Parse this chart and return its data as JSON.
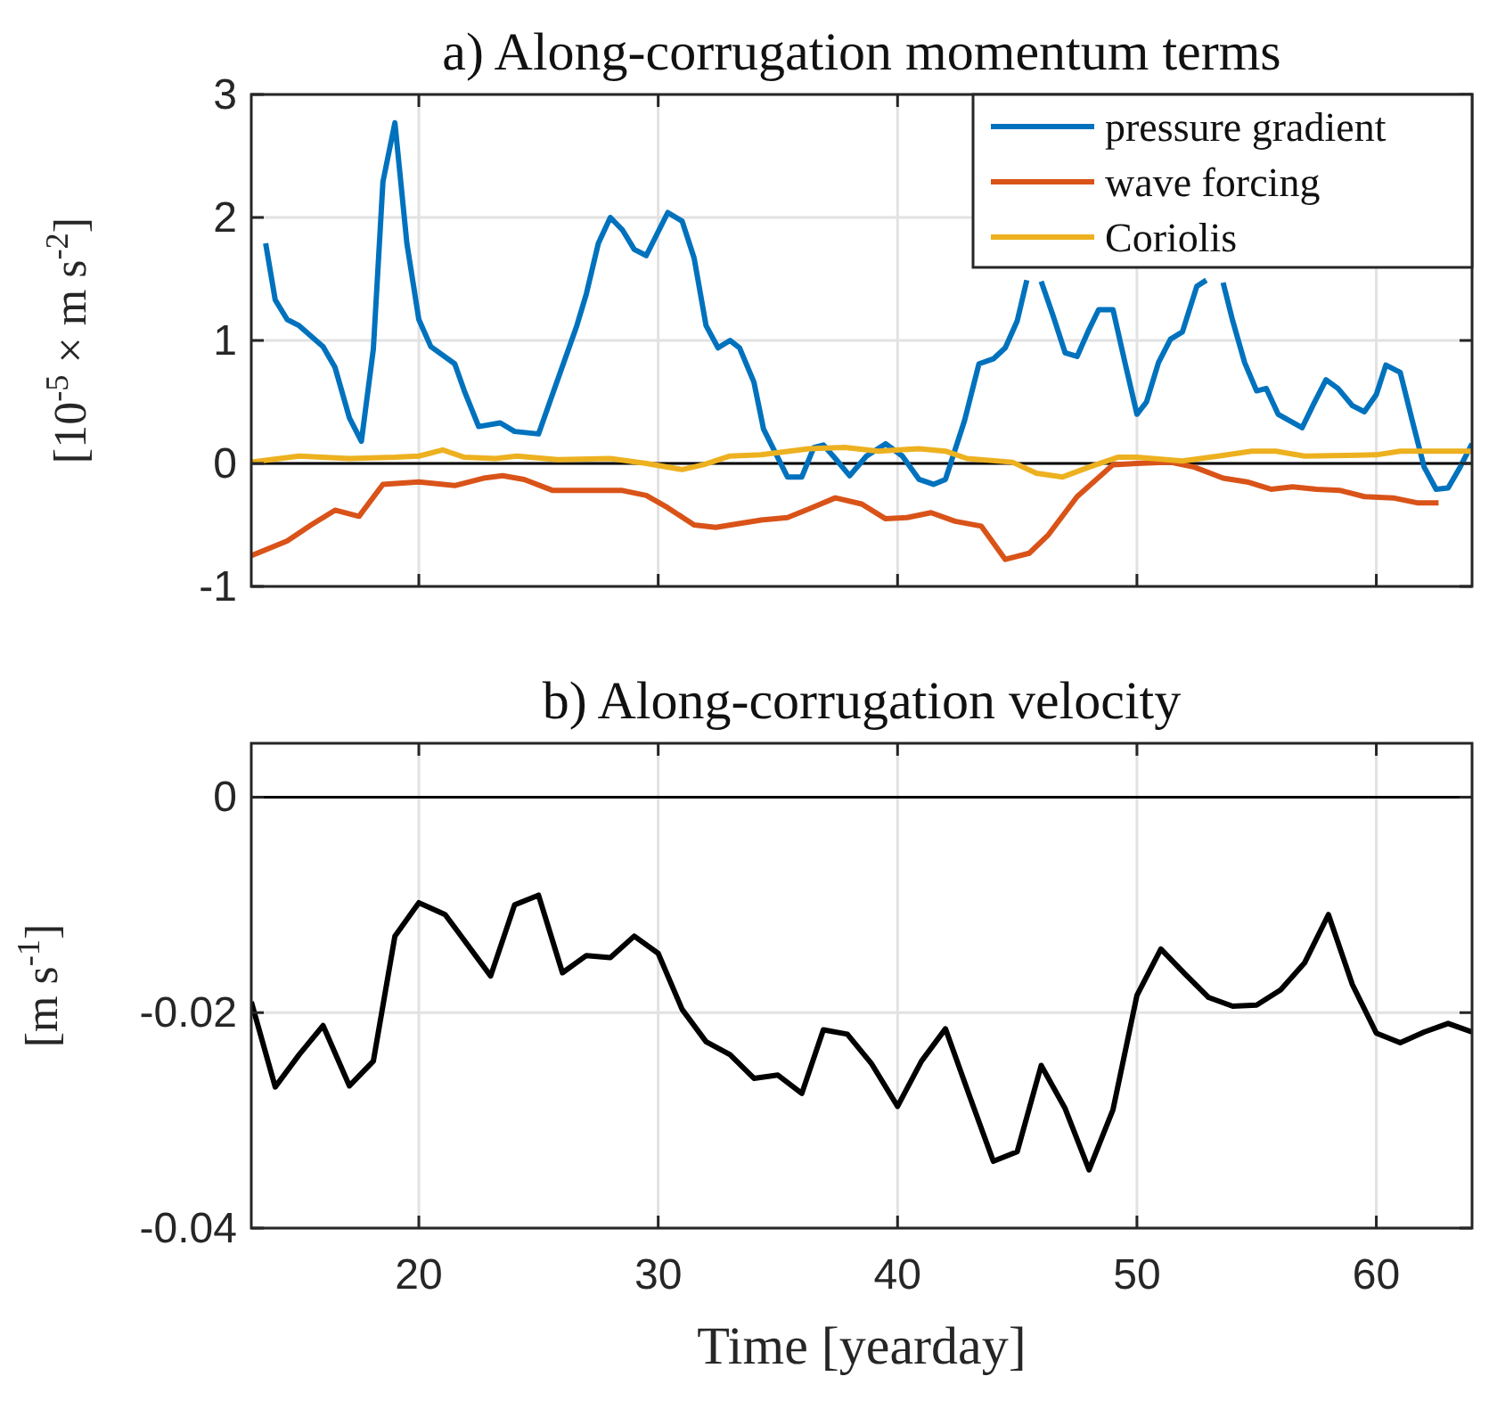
{
  "chart_data": [
    {
      "type": "line",
      "title": "a) Along-corrugation momentum terms",
      "ylabel": "[10$^{-5}$ × m s$^{-2}$]",
      "xlim": [
        13,
        64
      ],
      "xticks": [
        20,
        30,
        40,
        50,
        60
      ],
      "ylim": [
        -1,
        3
      ],
      "yticks": [
        -1,
        0,
        1,
        2,
        3
      ],
      "grid": true,
      "legend": "top right",
      "tick_labels": "y",
      "ref_lines": [
        {
          "axis": "y",
          "value": 0,
          "color": "#000000"
        }
      ],
      "series": [
        {
          "name": "pressure gradient",
          "color": "#0072bd",
          "x": [
            13.6,
            14,
            14.5,
            15,
            16,
            16.5,
            17.1,
            17.6,
            18.1,
            18.5,
            19,
            19.5,
            20,
            20.5,
            21.5,
            21.9,
            22.5,
            23.4,
            24,
            25,
            25.6,
            26.6,
            27,
            27.5,
            28,
            28.5,
            29,
            29.5,
            30.4,
            31,
            31.5,
            32,
            32.5,
            33,
            33.4,
            34,
            34.4,
            35.4,
            36,
            36.5,
            36.9,
            37.4,
            38,
            38.7,
            39.5,
            40.2,
            40.9,
            41.5,
            42,
            42.8,
            43.4,
            44,
            44.5,
            45,
            45.4,
            45.7,
            46,
            46.5,
            47,
            47.5,
            48,
            48.4,
            49,
            49.5,
            50,
            50.4,
            50.9,
            51.4,
            51.9,
            52.5,
            52.9,
            53.2,
            53.6,
            54,
            54.5,
            55,
            55.4,
            55.9,
            56.9,
            57.4,
            57.9,
            58.4,
            59,
            59.5,
            60,
            60.4,
            61,
            61.5,
            62,
            62.5,
            63,
            63.5,
            64
          ],
          "values": [
            1.79,
            1.33,
            1.17,
            1.12,
            0.95,
            0.78,
            0.37,
            0.18,
            0.93,
            2.29,
            2.77,
            1.79,
            1.17,
            0.95,
            0.81,
            0.59,
            0.3,
            0.33,
            0.26,
            0.24,
            0.57,
            1.12,
            1.38,
            1.79,
            2,
            1.9,
            1.74,
            1.69,
            2.04,
            1.97,
            1.67,
            1.12,
            0.94,
            1,
            0.94,
            0.66,
            0.28,
            -0.11,
            -0.11,
            0.13,
            0.15,
            0.04,
            -0.1,
            0.06,
            0.16,
            0.06,
            -0.13,
            -0.17,
            -0.13,
            0.35,
            0.81,
            0.85,
            0.94,
            1.16,
            1.49,
            null,
            1.48,
            1.2,
            0.9,
            0.87,
            1.09,
            1.25,
            1.25,
            0.82,
            0.4,
            0.5,
            0.82,
            1.01,
            1.07,
            1.44,
            1.49,
            null,
            1.47,
            1.16,
            0.82,
            0.59,
            0.61,
            0.4,
            0.29,
            0.49,
            0.68,
            0.61,
            0.47,
            0.42,
            0.56,
            0.8,
            0.74,
            0.35,
            -0.03,
            -0.21,
            -0.2,
            -0.03,
            0.16
          ]
        },
        {
          "name": "wave forcing",
          "color": "#d95319",
          "x": [
            13,
            14.5,
            15.5,
            16.5,
            17.5,
            18.5,
            20,
            21.5,
            22.7,
            23.5,
            24.4,
            25.6,
            27,
            28.5,
            29.5,
            30.4,
            31.5,
            32.4,
            34.3,
            35.4,
            36.3,
            37.4,
            38.5,
            39.5,
            40.4,
            41.4,
            42.4,
            43.5,
            44.5,
            45.5,
            46.3,
            47.5,
            49,
            50,
            51.4,
            52.4,
            53.6,
            54.6,
            55.6,
            56.5,
            57.5,
            58.5,
            59.5,
            60.7,
            61.7,
            62.6
          ],
          "values": [
            -0.75,
            -0.63,
            -0.5,
            -0.38,
            -0.43,
            -0.17,
            -0.15,
            -0.18,
            -0.12,
            -0.1,
            -0.13,
            -0.22,
            -0.22,
            -0.22,
            -0.26,
            -0.36,
            -0.5,
            -0.52,
            -0.46,
            -0.44,
            -0.37,
            -0.28,
            -0.33,
            -0.45,
            -0.44,
            -0.4,
            -0.47,
            -0.51,
            -0.78,
            -0.73,
            -0.58,
            -0.27,
            -0.01,
            0,
            0.01,
            -0.03,
            -0.12,
            -0.15,
            -0.21,
            -0.19,
            -0.21,
            -0.22,
            -0.27,
            -0.28,
            -0.32,
            -0.32
          ]
        },
        {
          "name": "Coriolis",
          "color": "#edb120",
          "x": [
            13,
            15,
            17.1,
            19,
            20,
            21,
            21.9,
            23.2,
            24.1,
            25.8,
            28,
            29.5,
            31,
            31.9,
            33,
            34.3,
            36.3,
            37.8,
            39.2,
            40.9,
            42,
            42.9,
            44.8,
            45.8,
            46.9,
            48,
            49.2,
            50,
            51.9,
            53.4,
            54.8,
            55.8,
            57,
            60,
            61,
            64
          ],
          "values": [
            0.01,
            0.06,
            0.04,
            0.05,
            0.06,
            0.11,
            0.05,
            0.04,
            0.06,
            0.03,
            0.04,
            0,
            -0.05,
            -0.01,
            0.06,
            0.07,
            0.12,
            0.13,
            0.1,
            0.12,
            0.1,
            0.04,
            0.01,
            -0.08,
            -0.11,
            -0.03,
            0.05,
            0.05,
            0.02,
            0.06,
            0.1,
            0.1,
            0.06,
            0.07,
            0.1,
            0.1
          ]
        }
      ]
    },
    {
      "type": "line",
      "title": "b) Along-corrugation velocity",
      "xlabel": "Time [yearday]",
      "ylabel": "[m s$^{-1}$]",
      "xlim": [
        13,
        64
      ],
      "xticks": [
        20,
        30,
        40,
        50,
        60
      ],
      "ylim": [
        -0.04,
        0.005
      ],
      "yticks": [
        -0.04,
        -0.02,
        0
      ],
      "grid": true,
      "ref_lines": [
        {
          "axis": "y",
          "value": 0,
          "color": "#000000"
        }
      ],
      "series": [
        {
          "color": "#000000",
          "x": [
            13,
            14,
            15,
            16,
            17.1,
            18.1,
            19,
            20,
            21.1,
            23,
            24,
            25,
            26,
            27,
            28,
            29,
            30,
            31,
            32,
            33,
            34,
            35,
            36,
            36.9,
            37.9,
            38.9,
            40,
            41,
            42,
            43,
            44,
            45,
            46,
            47,
            48,
            49,
            50,
            51,
            52,
            53,
            54,
            55,
            56,
            57,
            58,
            59,
            60,
            61,
            62,
            63,
            64
          ],
          "values": [
            -0.019,
            -0.0269,
            -0.0239,
            -0.0212,
            -0.0268,
            -0.0245,
            -0.0129,
            -0.0098,
            -0.0109,
            -0.0166,
            -0.01,
            -0.0091,
            -0.0163,
            -0.0147,
            -0.0149,
            -0.0129,
            -0.0145,
            -0.0197,
            -0.0227,
            -0.0239,
            -0.0261,
            -0.0258,
            -0.0275,
            -0.0216,
            -0.022,
            -0.0247,
            -0.0287,
            -0.0245,
            -0.0215,
            -0.0277,
            -0.0338,
            -0.0329,
            -0.0249,
            -0.0289,
            -0.0346,
            -0.029,
            -0.0184,
            -0.0141,
            -0.0164,
            -0.0186,
            -0.0194,
            -0.0193,
            -0.0179,
            -0.0154,
            -0.0109,
            -0.0174,
            -0.0219,
            -0.0228,
            -0.0218,
            -0.021,
            -0.0218
          ]
        }
      ]
    }
  ]
}
